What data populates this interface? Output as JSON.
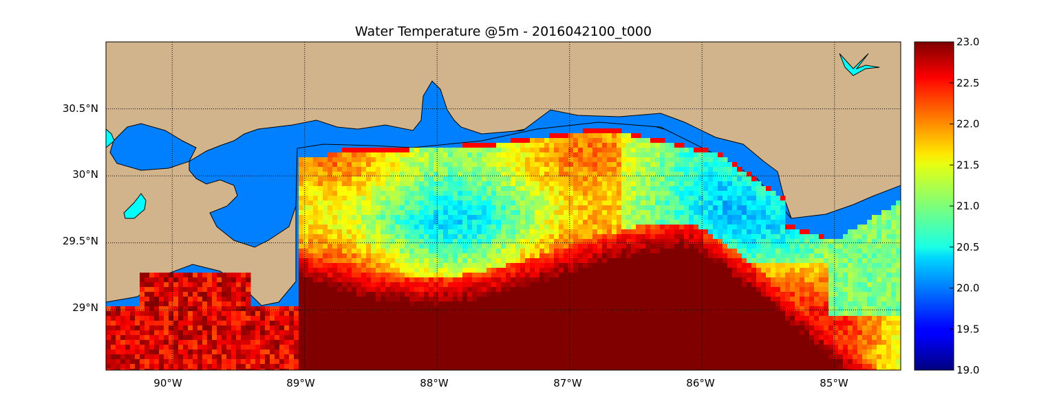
{
  "title": "Water Temperature @5m - 2016042100_t000",
  "map": {
    "lon_range": [
      -90.5,
      -84.5
    ],
    "lat_range": [
      28.55,
      31.0
    ],
    "land_color": "#d2b48c",
    "ocean_color": "#0080ff",
    "coastline_color": "#000000",
    "grid": "on",
    "grid_style": "dotted",
    "lon_ticks": [
      -90,
      -89,
      -88,
      -87,
      -86,
      -85
    ],
    "lon_tick_labels": [
      "90°W",
      "89°W",
      "88°W",
      "87°W",
      "86°W",
      "85°W"
    ],
    "lat_ticks": [
      29.0,
      29.5,
      30.0,
      30.5
    ],
    "lat_tick_labels": [
      "29°N",
      "29.5°N",
      "30°N",
      "30.5°N"
    ]
  },
  "colorbar": {
    "vmin": 19.0,
    "vmax": 23.0,
    "colormap": "jet",
    "ticks": [
      19.0,
      19.5,
      20.0,
      20.5,
      21.0,
      21.5,
      22.0,
      22.5,
      23.0
    ],
    "tick_labels": [
      "19.0",
      "19.5",
      "20.0",
      "20.5",
      "21.0",
      "21.5",
      "22.0",
      "22.5",
      "23.0"
    ]
  }
}
